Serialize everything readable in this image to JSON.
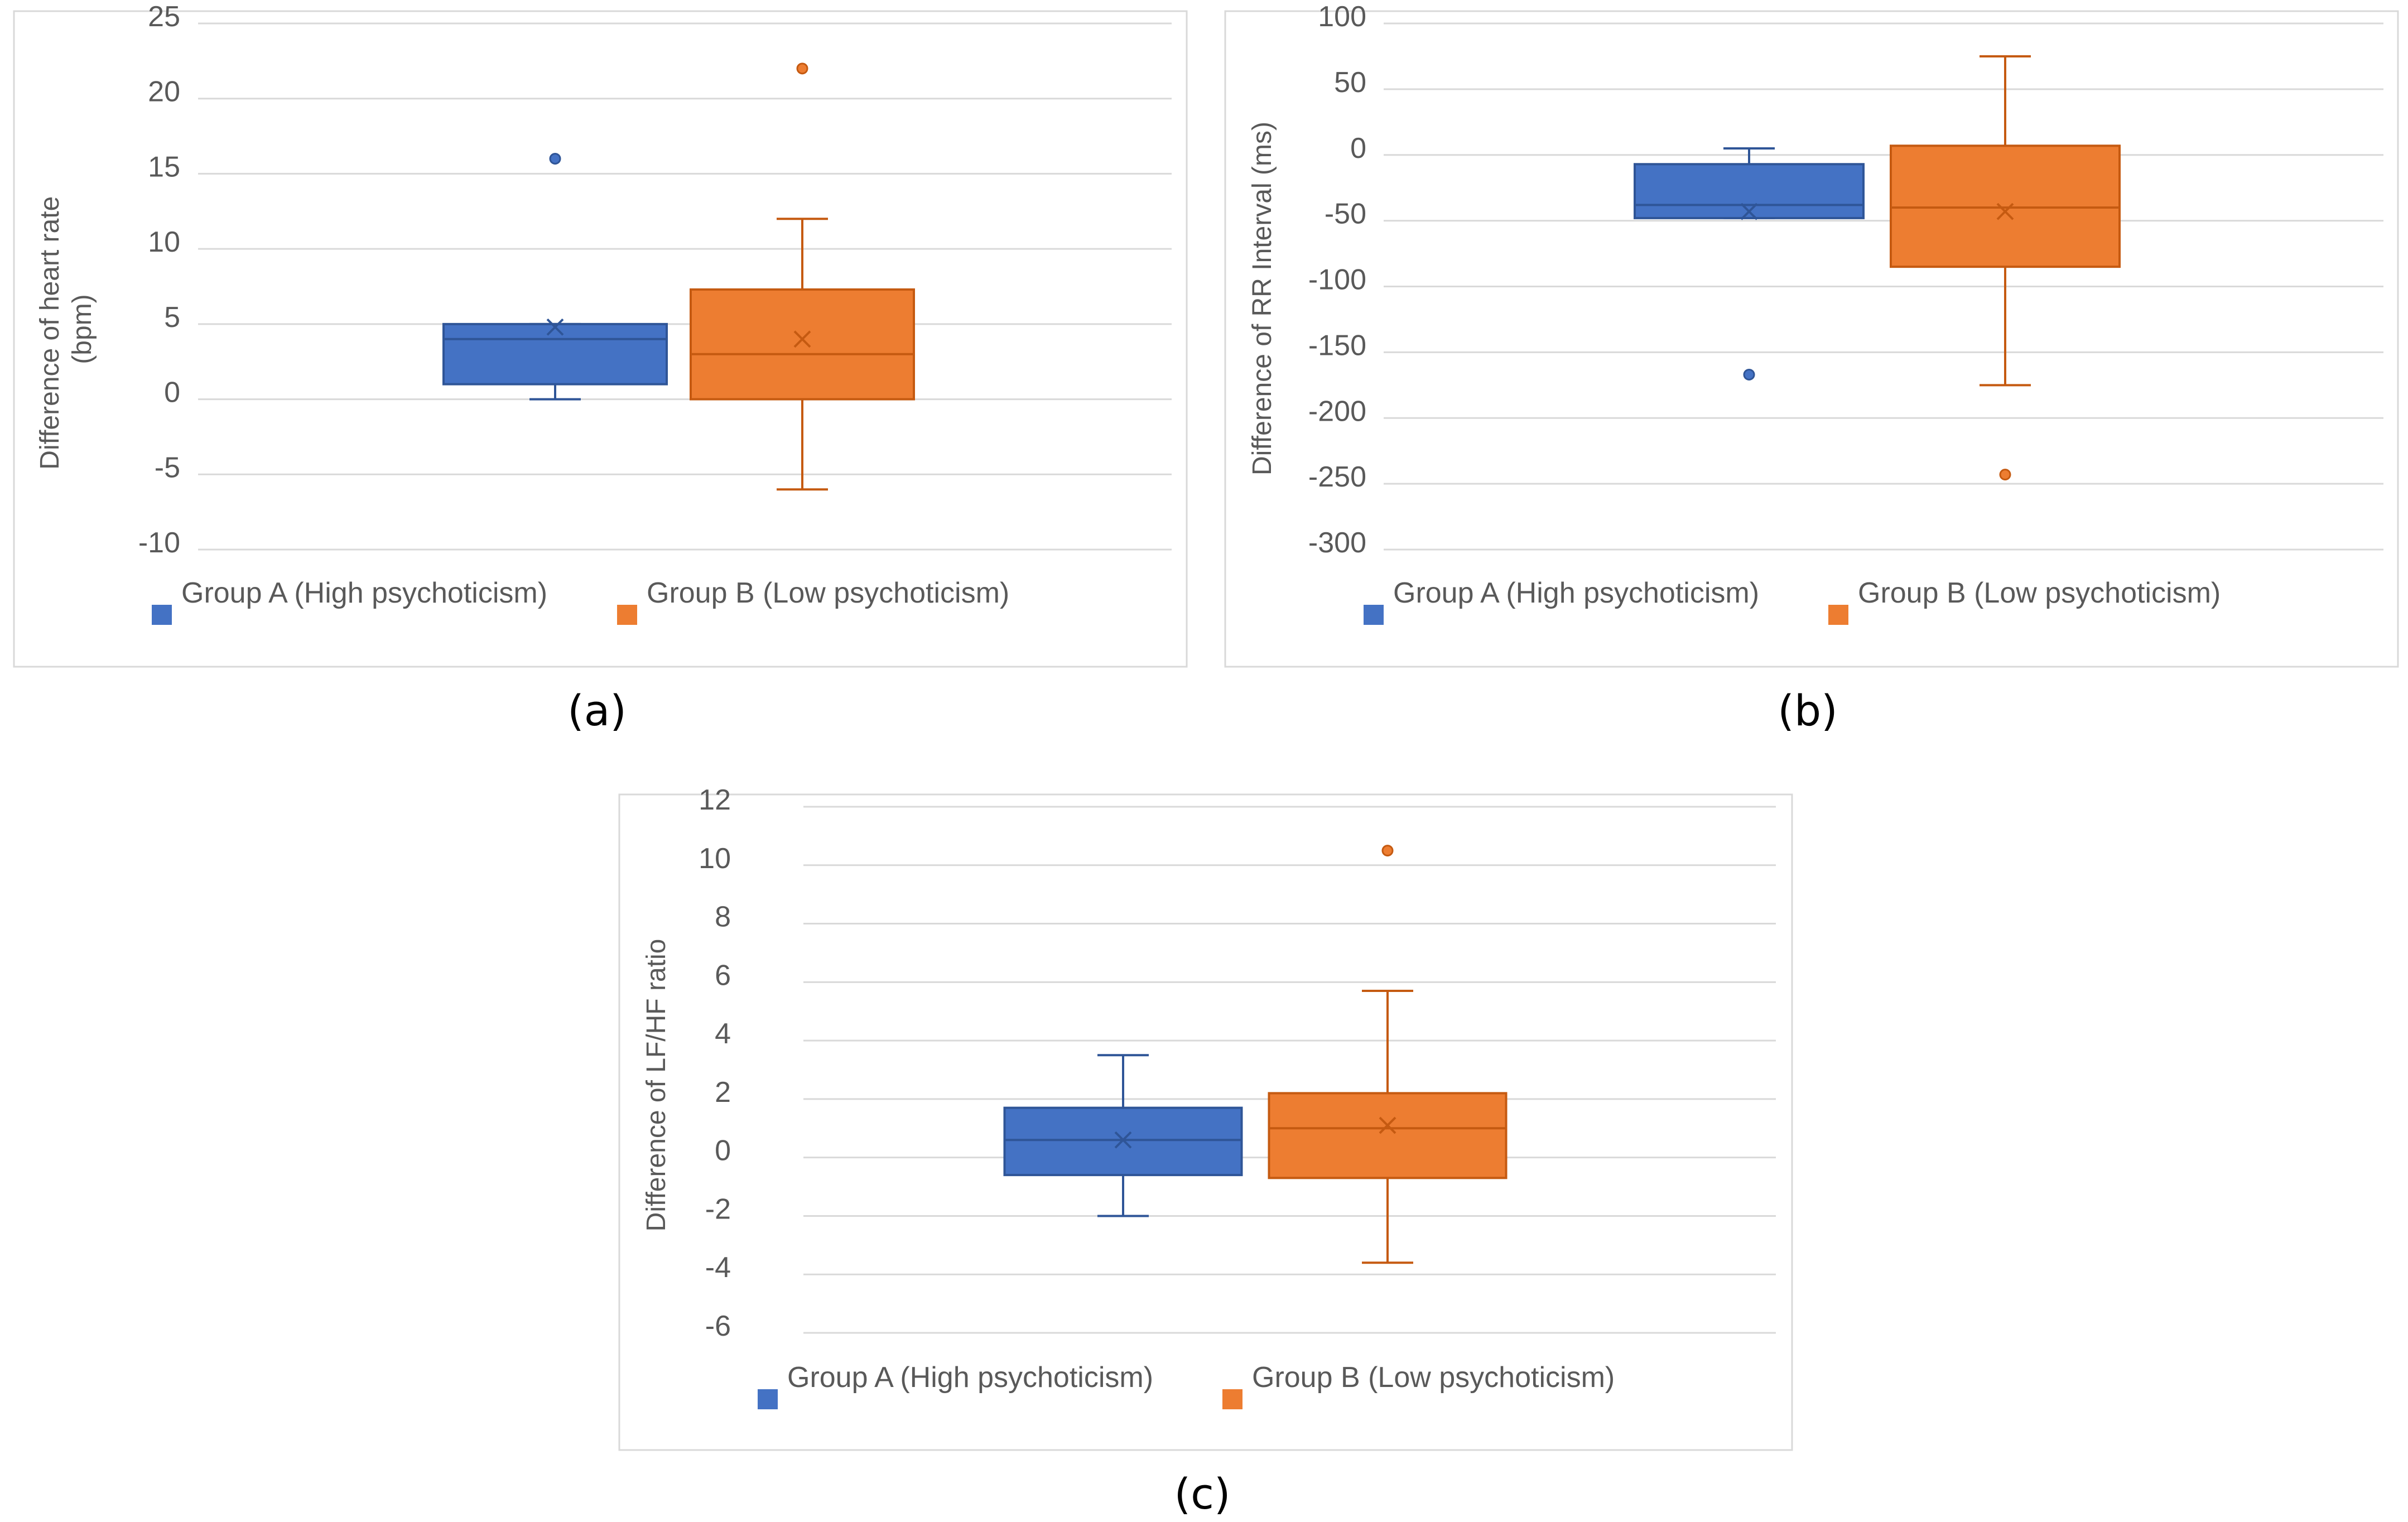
{
  "colors": {
    "group_a": "#4472C4",
    "group_b": "#ED7D31",
    "gridline": "#D9D9D9",
    "frame": "#D9D9D9",
    "axis_text": "#595959",
    "caption_text": "#000000"
  },
  "legend": {
    "group_a": "Group A (High psychoticism)",
    "group_b": "Group B (Low psychoticism)"
  },
  "chart_data": [
    {
      "id": "a",
      "caption": "(a)",
      "type": "box",
      "title": "",
      "xlabel": "",
      "ylabel_lines": [
        "Difference of heart rate",
        "(bpm)"
      ],
      "ylim": [
        -10,
        25
      ],
      "yticks": [
        "25",
        "20",
        "15",
        "10",
        "5",
        "0",
        "-5",
        "-10"
      ],
      "legend_position": "bottom",
      "grid": true,
      "series": [
        {
          "name": "Group A (High psychoticism)",
          "whisker_low": 0,
          "q1": 1,
          "median": 4,
          "q3": 5,
          "whisker_high": 5,
          "mean": 4.8,
          "outliers": [
            16
          ]
        },
        {
          "name": "Group B (Low psychoticism)",
          "whisker_low": -6,
          "q1": 0,
          "median": 3,
          "q3": 7.3,
          "whisker_high": 12,
          "mean": 4,
          "outliers": [
            22
          ]
        }
      ]
    },
    {
      "id": "b",
      "caption": "(b)",
      "type": "box",
      "title": "",
      "xlabel": "",
      "ylabel_lines": [
        "Difference of RR Interval (ms)"
      ],
      "ylim": [
        -300,
        100
      ],
      "yticks": [
        "100",
        "50",
        "0",
        "-50",
        "-100",
        "-150",
        "-200",
        "-250",
        "-300"
      ],
      "legend_position": "bottom",
      "grid": true,
      "series": [
        {
          "name": "Group A (High psychoticism)",
          "whisker_low": -48,
          "q1": -48,
          "median": -38,
          "q3": -7,
          "whisker_high": 5,
          "mean": -43,
          "outliers": [
            -167
          ]
        },
        {
          "name": "Group B (Low psychoticism)",
          "whisker_low": -175,
          "q1": -85,
          "median": -40,
          "q3": 7,
          "whisker_high": 75,
          "mean": -43,
          "outliers": [
            -243
          ]
        }
      ]
    },
    {
      "id": "c",
      "caption": "(c)",
      "type": "box",
      "title": "",
      "xlabel": "",
      "ylabel_lines": [
        "Difference of LF/HF ratio"
      ],
      "ylim": [
        -6,
        12
      ],
      "yticks": [
        "12",
        "10",
        "8",
        "6",
        "4",
        "2",
        "0",
        "-2",
        "-4",
        "-6"
      ],
      "legend_position": "bottom",
      "grid": true,
      "series": [
        {
          "name": "Group A (High psychoticism)",
          "whisker_low": -2,
          "q1": -0.6,
          "median": 0.6,
          "q3": 1.7,
          "whisker_high": 3.5,
          "mean": 0.6,
          "outliers": []
        },
        {
          "name": "Group B (Low psychoticism)",
          "whisker_low": -3.6,
          "q1": -0.7,
          "median": 1,
          "q3": 2.2,
          "whisker_high": 5.7,
          "mean": 1.1,
          "outliers": [
            10.5
          ]
        }
      ]
    }
  ]
}
